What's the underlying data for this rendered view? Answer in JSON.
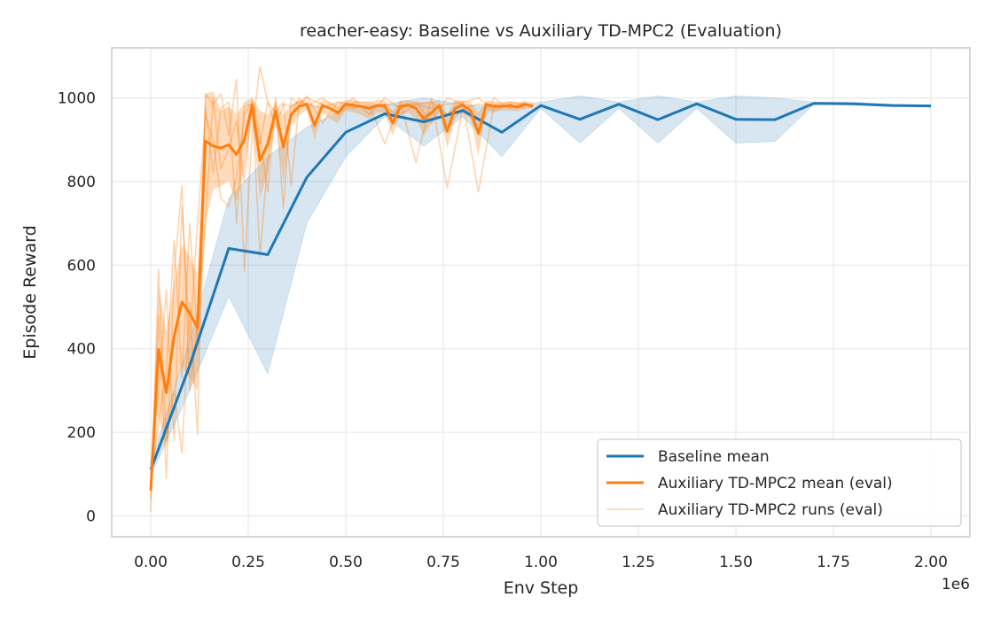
{
  "chart_data": {
    "type": "line",
    "title": "reacher-easy: Baseline vs Auxiliary TD-MPC2 (Evaluation)",
    "xlabel": "Env Step",
    "ylabel": "Episode Reward",
    "x_offset_label": "1e6",
    "xlim": [
      -0.1,
      2.1
    ],
    "ylim": [
      -50,
      1120
    ],
    "x_ticks": [
      0.0,
      0.25,
      0.5,
      0.75,
      1.0,
      1.25,
      1.5,
      1.75,
      2.0
    ],
    "x_tick_labels": [
      "0.00",
      "0.25",
      "0.50",
      "0.75",
      "1.00",
      "1.25",
      "1.50",
      "1.75",
      "2.00"
    ],
    "y_ticks": [
      0,
      200,
      400,
      600,
      800,
      1000
    ],
    "y_tick_labels": [
      "0",
      "200",
      "400",
      "600",
      "800",
      "1000"
    ],
    "grid": true,
    "legend_position": "lower-right",
    "colors": {
      "baseline": "#1f77b4",
      "auxiliary": "#ff7f0e"
    },
    "legend": [
      "Baseline mean",
      "Auxiliary TD-MPC2 mean (eval)",
      "Auxiliary TD-MPC2 runs (eval)"
    ],
    "baseline_mean": {
      "name": "Baseline mean",
      "x": [
        0.0,
        0.1,
        0.2,
        0.3,
        0.4,
        0.5,
        0.6,
        0.7,
        0.8,
        0.9,
        1.0,
        1.1,
        1.2,
        1.3,
        1.4,
        1.5,
        1.6,
        1.7,
        1.8,
        1.9,
        2.0
      ],
      "y": [
        110,
        360,
        640,
        625,
        810,
        918,
        962,
        943,
        970,
        918,
        982,
        949,
        985,
        948,
        986,
        949,
        948,
        987,
        986,
        982,
        981
      ],
      "lower": [
        95,
        300,
        525,
        340,
        700,
        860,
        955,
        885,
        955,
        860,
        975,
        892,
        975,
        892,
        975,
        892,
        896,
        985,
        985,
        980,
        980
      ],
      "upper": [
        130,
        420,
        760,
        860,
        930,
        975,
        985,
        1000,
        985,
        975,
        990,
        1005,
        990,
        1005,
        990,
        1005,
        1000,
        990,
        990,
        985,
        983
      ]
    },
    "auxiliary_mean": {
      "name": "Auxiliary TD-MPC2 mean (eval)",
      "x": [
        0.0,
        0.02,
        0.04,
        0.06,
        0.08,
        0.1,
        0.12,
        0.14,
        0.16,
        0.18,
        0.2,
        0.22,
        0.24,
        0.26,
        0.28,
        0.3,
        0.32,
        0.34,
        0.36,
        0.38,
        0.4,
        0.42,
        0.44,
        0.46,
        0.48,
        0.5,
        0.52,
        0.54,
        0.56,
        0.58,
        0.6,
        0.62,
        0.64,
        0.66,
        0.68,
        0.7,
        0.72,
        0.74,
        0.76,
        0.78,
        0.8,
        0.82,
        0.84,
        0.86,
        0.88,
        0.9,
        0.92,
        0.94,
        0.96,
        0.98
      ],
      "y": [
        60,
        398,
        295,
        430,
        512,
        485,
        450,
        897,
        885,
        880,
        888,
        865,
        900,
        982,
        850,
        890,
        968,
        883,
        960,
        980,
        985,
        935,
        982,
        975,
        965,
        985,
        982,
        980,
        975,
        982,
        982,
        940,
        980,
        983,
        975,
        950,
        965,
        982,
        920,
        975,
        983,
        970,
        915,
        985,
        980,
        980,
        982,
        978,
        985,
        980
      ]
    },
    "auxiliary_band": {
      "x": [
        0.0,
        0.02,
        0.04,
        0.06,
        0.08,
        0.1,
        0.12,
        0.14,
        0.16,
        0.18,
        0.2,
        0.22,
        0.24,
        0.26,
        0.28,
        0.3,
        0.32,
        0.34,
        0.36,
        0.38,
        0.4,
        0.42,
        0.44,
        0.46,
        0.48,
        0.5,
        0.52,
        0.54,
        0.56,
        0.58,
        0.6,
        0.62,
        0.64,
        0.66,
        0.68,
        0.7,
        0.72,
        0.74,
        0.76,
        0.78,
        0.8,
        0.82,
        0.84,
        0.86,
        0.88,
        0.9,
        0.92,
        0.94,
        0.96,
        0.98
      ],
      "lower": [
        40,
        240,
        160,
        300,
        360,
        330,
        300,
        700,
        780,
        790,
        800,
        750,
        830,
        950,
        760,
        820,
        940,
        800,
        930,
        960,
        970,
        900,
        965,
        950,
        940,
        970,
        965,
        960,
        950,
        965,
        965,
        910,
        960,
        965,
        950,
        910,
        940,
        965,
        880,
        950,
        965,
        950,
        860,
        970,
        965,
        970,
        970,
        968,
        975,
        975
      ],
      "upper": [
        95,
        550,
        440,
        560,
        650,
        620,
        580,
        1010,
        1015,
        970,
        980,
        960,
        990,
        1000,
        970,
        960,
        985,
        960,
        985,
        995,
        995,
        980,
        995,
        990,
        985,
        995,
        995,
        990,
        990,
        995,
        995,
        970,
        995,
        995,
        990,
        990,
        990,
        995,
        960,
        995,
        995,
        990,
        965,
        995,
        992,
        990,
        992,
        990,
        992,
        990
      ]
    },
    "auxiliary_runs": [
      {
        "name": "Auxiliary TD-MPC2 runs (eval)",
        "x": [
          0.0,
          0.02,
          0.04,
          0.06,
          0.08,
          0.1,
          0.12,
          0.14,
          0.16,
          0.18,
          0.2,
          0.22,
          0.24,
          0.26,
          0.28,
          0.3,
          0.32,
          0.34,
          0.36,
          0.38,
          0.4,
          0.44,
          0.48,
          0.52,
          0.56,
          0.6,
          0.64,
          0.68,
          0.72,
          0.76,
          0.8,
          0.84,
          0.88,
          0.92,
          0.96
        ],
        "y": [
          10,
          590,
          180,
          300,
          150,
          510,
          195,
          1010,
          985,
          1010,
          910,
          1045,
          585,
          920,
          1075,
          990,
          930,
          985,
          980,
          990,
          985,
          975,
          990,
          985,
          975,
          985,
          980,
          985,
          975,
          985,
          990,
          775,
          985,
          980,
          985
        ]
      },
      {
        "name": "Auxiliary TD-MPC2 runs (eval)",
        "x": [
          0.0,
          0.02,
          0.04,
          0.06,
          0.08,
          0.1,
          0.12,
          0.14,
          0.16,
          0.18,
          0.2,
          0.22,
          0.24,
          0.26,
          0.28,
          0.3,
          0.32,
          0.34,
          0.36,
          0.38,
          0.4,
          0.44,
          0.48,
          0.52,
          0.56,
          0.6,
          0.64,
          0.68,
          0.72,
          0.76,
          0.8,
          0.84,
          0.88,
          0.92,
          0.96
        ],
        "y": [
          120,
          300,
          540,
          180,
          740,
          420,
          700,
          960,
          900,
          760,
          740,
          810,
          960,
          990,
          620,
          850,
          1000,
          735,
          1000,
          985,
          1005,
          940,
          990,
          975,
          985,
          890,
          990,
          845,
          1000,
          785,
          975,
          985,
          980,
          990,
          985
        ]
      },
      {
        "name": "Auxiliary TD-MPC2 runs (eval)",
        "x": [
          0.0,
          0.02,
          0.04,
          0.06,
          0.08,
          0.1,
          0.12,
          0.14,
          0.16,
          0.18,
          0.2,
          0.22,
          0.24,
          0.26,
          0.28,
          0.3,
          0.32,
          0.34,
          0.36,
          0.38,
          0.4,
          0.44,
          0.48,
          0.52,
          0.56,
          0.6,
          0.64,
          0.68,
          0.72,
          0.76,
          0.8,
          0.84,
          0.88,
          0.92,
          0.96
        ],
        "y": [
          40,
          480,
          90,
          580,
          790,
          300,
          460,
          700,
          1000,
          830,
          880,
          945,
          800,
          1000,
          910,
          775,
          990,
          880,
          960,
          1000,
          980,
          1000,
          975,
          1000,
          960,
          1000,
          975,
          990,
          940,
          1000,
          985,
          920,
          1000,
          975,
          990
        ]
      },
      {
        "name": "Auxiliary TD-MPC2 runs (eval)",
        "x": [
          0.0,
          0.02,
          0.04,
          0.06,
          0.08,
          0.1,
          0.12,
          0.14,
          0.16,
          0.18,
          0.2,
          0.22,
          0.24,
          0.26,
          0.28,
          0.3,
          0.32,
          0.34,
          0.36,
          0.38,
          0.4,
          0.44,
          0.48,
          0.52,
          0.56,
          0.6,
          0.64,
          0.68,
          0.72,
          0.76,
          0.8,
          0.84,
          0.88,
          0.92,
          0.96
        ],
        "y": [
          80,
          220,
          350,
          660,
          330,
          700,
          420,
          980,
          820,
          975,
          990,
          700,
          980,
          985,
          890,
          990,
          965,
          990,
          790,
          985,
          1000,
          985,
          960,
          990,
          990,
          975,
          960,
          985,
          990,
          960,
          990,
          1000,
          970,
          985,
          975
        ]
      }
    ]
  }
}
